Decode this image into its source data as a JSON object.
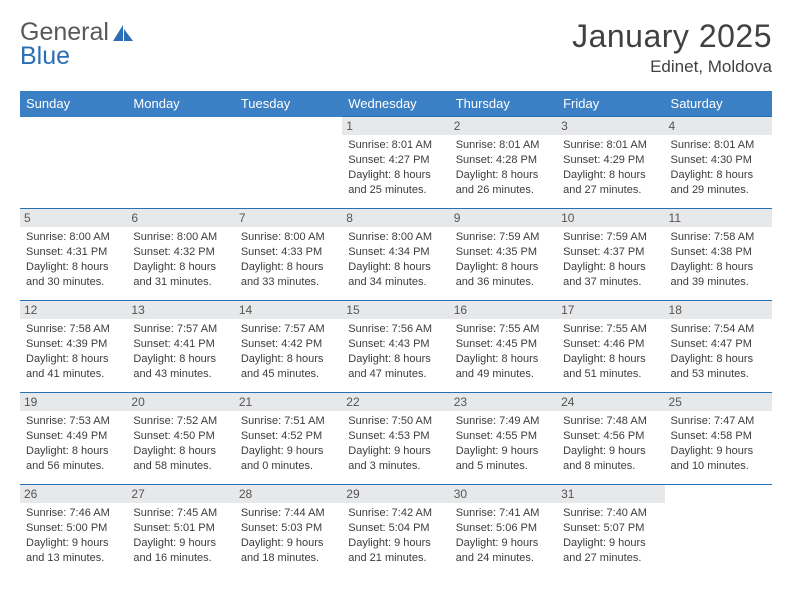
{
  "brand": {
    "part1": "General",
    "part2": "Blue"
  },
  "header": {
    "month_title": "January 2025",
    "location": "Edinet, Moldova"
  },
  "colors": {
    "header_bg": "#3b7fc4",
    "header_text": "#ffffff",
    "daynum_bg": "#e7e8ea",
    "border": "#2a6fb5",
    "title_color": "#414141",
    "text_color": "#3c3c3c"
  },
  "day_labels": [
    "Sunday",
    "Monday",
    "Tuesday",
    "Wednesday",
    "Thursday",
    "Friday",
    "Saturday"
  ],
  "weeks": [
    [
      null,
      null,
      null,
      {
        "n": "1",
        "sunrise": "8:01 AM",
        "sunset": "4:27 PM",
        "dl_h": "8",
        "dl_m": "25"
      },
      {
        "n": "2",
        "sunrise": "8:01 AM",
        "sunset": "4:28 PM",
        "dl_h": "8",
        "dl_m": "26"
      },
      {
        "n": "3",
        "sunrise": "8:01 AM",
        "sunset": "4:29 PM",
        "dl_h": "8",
        "dl_m": "27"
      },
      {
        "n": "4",
        "sunrise": "8:01 AM",
        "sunset": "4:30 PM",
        "dl_h": "8",
        "dl_m": "29"
      }
    ],
    [
      {
        "n": "5",
        "sunrise": "8:00 AM",
        "sunset": "4:31 PM",
        "dl_h": "8",
        "dl_m": "30"
      },
      {
        "n": "6",
        "sunrise": "8:00 AM",
        "sunset": "4:32 PM",
        "dl_h": "8",
        "dl_m": "31"
      },
      {
        "n": "7",
        "sunrise": "8:00 AM",
        "sunset": "4:33 PM",
        "dl_h": "8",
        "dl_m": "33"
      },
      {
        "n": "8",
        "sunrise": "8:00 AM",
        "sunset": "4:34 PM",
        "dl_h": "8",
        "dl_m": "34"
      },
      {
        "n": "9",
        "sunrise": "7:59 AM",
        "sunset": "4:35 PM",
        "dl_h": "8",
        "dl_m": "36"
      },
      {
        "n": "10",
        "sunrise": "7:59 AM",
        "sunset": "4:37 PM",
        "dl_h": "8",
        "dl_m": "37"
      },
      {
        "n": "11",
        "sunrise": "7:58 AM",
        "sunset": "4:38 PM",
        "dl_h": "8",
        "dl_m": "39"
      }
    ],
    [
      {
        "n": "12",
        "sunrise": "7:58 AM",
        "sunset": "4:39 PM",
        "dl_h": "8",
        "dl_m": "41"
      },
      {
        "n": "13",
        "sunrise": "7:57 AM",
        "sunset": "4:41 PM",
        "dl_h": "8",
        "dl_m": "43"
      },
      {
        "n": "14",
        "sunrise": "7:57 AM",
        "sunset": "4:42 PM",
        "dl_h": "8",
        "dl_m": "45"
      },
      {
        "n": "15",
        "sunrise": "7:56 AM",
        "sunset": "4:43 PM",
        "dl_h": "8",
        "dl_m": "47"
      },
      {
        "n": "16",
        "sunrise": "7:55 AM",
        "sunset": "4:45 PM",
        "dl_h": "8",
        "dl_m": "49"
      },
      {
        "n": "17",
        "sunrise": "7:55 AM",
        "sunset": "4:46 PM",
        "dl_h": "8",
        "dl_m": "51"
      },
      {
        "n": "18",
        "sunrise": "7:54 AM",
        "sunset": "4:47 PM",
        "dl_h": "8",
        "dl_m": "53"
      }
    ],
    [
      {
        "n": "19",
        "sunrise": "7:53 AM",
        "sunset": "4:49 PM",
        "dl_h": "8",
        "dl_m": "56"
      },
      {
        "n": "20",
        "sunrise": "7:52 AM",
        "sunset": "4:50 PM",
        "dl_h": "8",
        "dl_m": "58"
      },
      {
        "n": "21",
        "sunrise": "7:51 AM",
        "sunset": "4:52 PM",
        "dl_h": "9",
        "dl_m": "0"
      },
      {
        "n": "22",
        "sunrise": "7:50 AM",
        "sunset": "4:53 PM",
        "dl_h": "9",
        "dl_m": "3"
      },
      {
        "n": "23",
        "sunrise": "7:49 AM",
        "sunset": "4:55 PM",
        "dl_h": "9",
        "dl_m": "5"
      },
      {
        "n": "24",
        "sunrise": "7:48 AM",
        "sunset": "4:56 PM",
        "dl_h": "9",
        "dl_m": "8"
      },
      {
        "n": "25",
        "sunrise": "7:47 AM",
        "sunset": "4:58 PM",
        "dl_h": "9",
        "dl_m": "10"
      }
    ],
    [
      {
        "n": "26",
        "sunrise": "7:46 AM",
        "sunset": "5:00 PM",
        "dl_h": "9",
        "dl_m": "13"
      },
      {
        "n": "27",
        "sunrise": "7:45 AM",
        "sunset": "5:01 PM",
        "dl_h": "9",
        "dl_m": "16"
      },
      {
        "n": "28",
        "sunrise": "7:44 AM",
        "sunset": "5:03 PM",
        "dl_h": "9",
        "dl_m": "18"
      },
      {
        "n": "29",
        "sunrise": "7:42 AM",
        "sunset": "5:04 PM",
        "dl_h": "9",
        "dl_m": "21"
      },
      {
        "n": "30",
        "sunrise": "7:41 AM",
        "sunset": "5:06 PM",
        "dl_h": "9",
        "dl_m": "24"
      },
      {
        "n": "31",
        "sunrise": "7:40 AM",
        "sunset": "5:07 PM",
        "dl_h": "9",
        "dl_m": "27"
      },
      null
    ]
  ],
  "labels": {
    "sunrise": "Sunrise:",
    "sunset": "Sunset:",
    "daylight": "Daylight:",
    "hours": "hours",
    "and": "and",
    "minutes": "minutes."
  }
}
